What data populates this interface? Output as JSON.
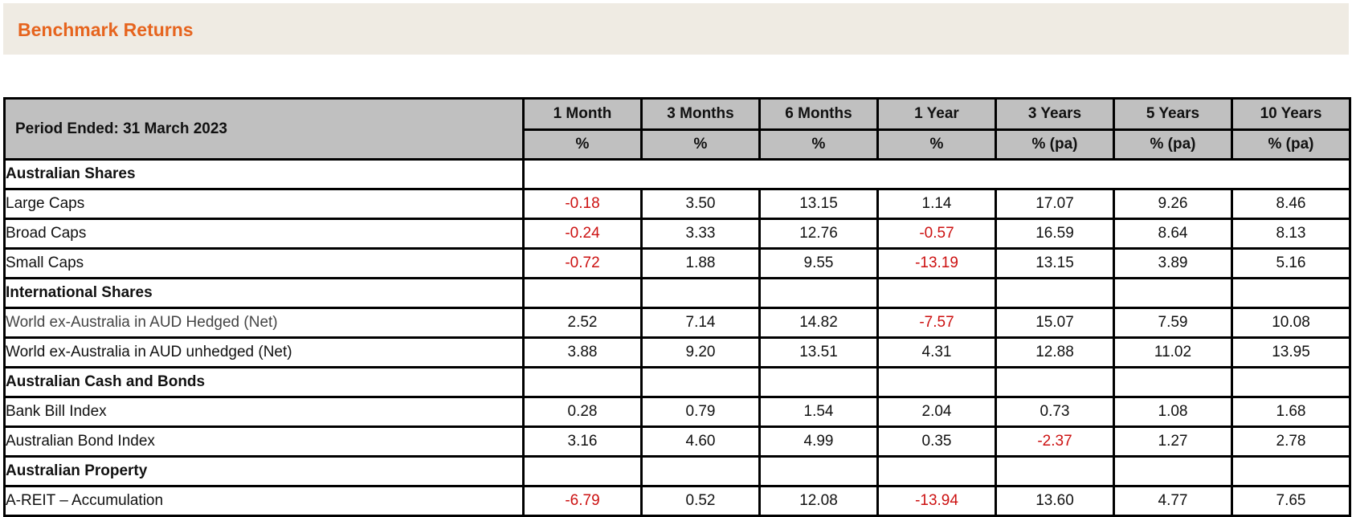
{
  "header": {
    "title": "Benchmark Returns"
  },
  "table": {
    "period_label": "Period Ended: 31 March 2023",
    "columns": [
      {
        "period": "1 Month",
        "unit": "%"
      },
      {
        "period": "3 Months",
        "unit": "%"
      },
      {
        "period": "6 Months",
        "unit": "%"
      },
      {
        "period": "1 Year",
        "unit": "%"
      },
      {
        "period": "3 Years",
        "unit": "% (pa)"
      },
      {
        "period": "5 Years",
        "unit": "% (pa)"
      },
      {
        "period": "10 Years",
        "unit": "% (pa)"
      }
    ],
    "negative_color": "#cc1111",
    "sections": [
      {
        "name": "Australian Shares",
        "rows": [
          {
            "label": "Large Caps",
            "values": [
              "-0.18",
              "3.50",
              "13.15",
              "1.14",
              "17.07",
              "9.26",
              "8.46"
            ]
          },
          {
            "label": "Broad Caps",
            "values": [
              "-0.24",
              "3.33",
              "12.76",
              "-0.57",
              "16.59",
              "8.64",
              "8.13"
            ]
          },
          {
            "label": "Small Caps",
            "values": [
              "-0.72",
              "1.88",
              "9.55",
              "-13.19",
              "13.15",
              "3.89",
              "5.16"
            ]
          }
        ]
      },
      {
        "name": "International Shares",
        "rows": [
          {
            "label": "World ex-Australia in AUD Hedged (Net)",
            "values": [
              "2.52",
              "7.14",
              "14.82",
              "-7.57",
              "15.07",
              "7.59",
              "10.08"
            ]
          },
          {
            "label": "World ex-Australia in AUD unhedged (Net)",
            "values": [
              "3.88",
              "9.20",
              "13.51",
              "4.31",
              "12.88",
              "11.02",
              "13.95"
            ]
          }
        ]
      },
      {
        "name": "Australian Cash and Bonds",
        "rows": [
          {
            "label": "Bank Bill Index",
            "values": [
              "0.28",
              "0.79",
              "1.54",
              "2.04",
              "0.73",
              "1.08",
              "1.68"
            ]
          },
          {
            "label": "Australian Bond Index",
            "values": [
              "3.16",
              "4.60",
              "4.99",
              "0.35",
              "-2.37",
              "1.27",
              "2.78"
            ]
          }
        ]
      },
      {
        "name": "Australian Property",
        "rows": [
          {
            "label": "A-REIT – Accumulation",
            "values": [
              "-6.79",
              "0.52",
              "12.08",
              "-13.94",
              "13.60",
              "4.77",
              "7.65"
            ]
          }
        ]
      }
    ]
  }
}
